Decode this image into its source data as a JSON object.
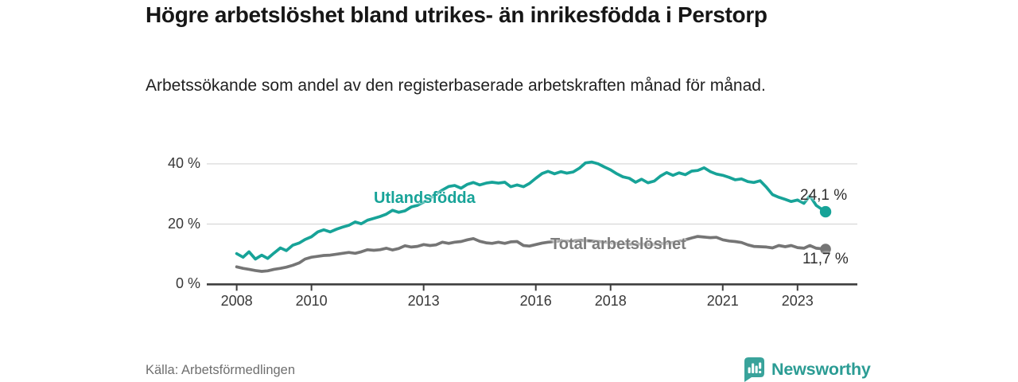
{
  "header": {
    "title": "Högre arbetslöshet bland utrikes- än inrikesfödda i Perstorp",
    "subtitle": "Arbetssökande som andel av den registerbaserade arbetskraften månad för månad."
  },
  "footer": {
    "source": "Källa: Arbetsförmedlingen",
    "logo_text": "Newsworthy"
  },
  "colors": {
    "accent_teal": "#17a398",
    "line_gray": "#757575",
    "axis": "#3f3f3f",
    "gridline": "#dadada",
    "logo_teal": "#39a39b"
  },
  "chart_data": {
    "type": "line",
    "title": "Högre arbetslöshet bland utrikes- än inrikesfödda i Perstorp",
    "subtitle": "Arbetssökande som andel av den registerbaserade arbetskraften månad för månad.",
    "xlabel": "",
    "ylabel": "",
    "grid": "horizontal",
    "legend_position": "inline-labels",
    "xlim": [
      2007.2,
      2024.6
    ],
    "ylim": [
      0,
      42
    ],
    "x_ticks": [
      2008,
      2010,
      2013,
      2016,
      2018,
      2021,
      2023
    ],
    "x_tick_labels": [
      "2008",
      "2010",
      "2013",
      "2016",
      "2018",
      "2021",
      "2023"
    ],
    "y_ticks": [
      0,
      20,
      40
    ],
    "y_tick_labels": [
      "0 %",
      "20 %",
      "40 %"
    ],
    "series": [
      {
        "name": "Utlandsfödda",
        "color": "#17a398",
        "end_value": 24.1,
        "end_label": "24,1 %",
        "points": [
          [
            2008.0,
            10.2
          ],
          [
            2008.17,
            9.0
          ],
          [
            2008.33,
            10.8
          ],
          [
            2008.5,
            8.4
          ],
          [
            2008.67,
            9.7
          ],
          [
            2008.83,
            8.6
          ],
          [
            2009.0,
            10.4
          ],
          [
            2009.17,
            12.1
          ],
          [
            2009.33,
            11.2
          ],
          [
            2009.5,
            13.0
          ],
          [
            2009.67,
            13.7
          ],
          [
            2009.83,
            14.9
          ],
          [
            2010.0,
            15.8
          ],
          [
            2010.17,
            17.4
          ],
          [
            2010.33,
            18.1
          ],
          [
            2010.5,
            17.4
          ],
          [
            2010.67,
            18.3
          ],
          [
            2010.83,
            19.0
          ],
          [
            2011.0,
            19.6
          ],
          [
            2011.17,
            20.7
          ],
          [
            2011.33,
            20.1
          ],
          [
            2011.5,
            21.3
          ],
          [
            2011.67,
            21.9
          ],
          [
            2011.83,
            22.5
          ],
          [
            2012.0,
            23.3
          ],
          [
            2012.17,
            24.6
          ],
          [
            2012.33,
            23.9
          ],
          [
            2012.5,
            24.4
          ],
          [
            2012.67,
            25.7
          ],
          [
            2012.83,
            26.2
          ],
          [
            2013.0,
            27.3
          ],
          [
            2013.17,
            28.5
          ],
          [
            2013.33,
            29.9
          ],
          [
            2013.5,
            31.3
          ],
          [
            2013.67,
            32.5
          ],
          [
            2013.83,
            32.8
          ],
          [
            2014.0,
            31.9
          ],
          [
            2014.17,
            33.2
          ],
          [
            2014.33,
            33.8
          ],
          [
            2014.5,
            33.0
          ],
          [
            2014.67,
            33.6
          ],
          [
            2014.83,
            33.9
          ],
          [
            2015.0,
            33.6
          ],
          [
            2015.17,
            33.9
          ],
          [
            2015.33,
            32.4
          ],
          [
            2015.5,
            33.0
          ],
          [
            2015.67,
            32.4
          ],
          [
            2015.83,
            33.5
          ],
          [
            2016.0,
            35.2
          ],
          [
            2016.17,
            36.8
          ],
          [
            2016.33,
            37.5
          ],
          [
            2016.5,
            36.7
          ],
          [
            2016.67,
            37.4
          ],
          [
            2016.83,
            36.9
          ],
          [
            2017.0,
            37.3
          ],
          [
            2017.17,
            38.6
          ],
          [
            2017.33,
            40.3
          ],
          [
            2017.5,
            40.6
          ],
          [
            2017.67,
            40.0
          ],
          [
            2017.83,
            39.0
          ],
          [
            2018.0,
            38.0
          ],
          [
            2018.17,
            36.7
          ],
          [
            2018.33,
            35.7
          ],
          [
            2018.5,
            35.2
          ],
          [
            2018.67,
            33.9
          ],
          [
            2018.83,
            34.9
          ],
          [
            2019.0,
            33.7
          ],
          [
            2019.17,
            34.3
          ],
          [
            2019.33,
            35.9
          ],
          [
            2019.5,
            37.1
          ],
          [
            2019.67,
            36.2
          ],
          [
            2019.83,
            37.0
          ],
          [
            2020.0,
            36.4
          ],
          [
            2020.17,
            37.6
          ],
          [
            2020.33,
            37.8
          ],
          [
            2020.5,
            38.7
          ],
          [
            2020.67,
            37.4
          ],
          [
            2020.83,
            36.6
          ],
          [
            2021.0,
            36.2
          ],
          [
            2021.17,
            35.5
          ],
          [
            2021.33,
            34.7
          ],
          [
            2021.5,
            35.0
          ],
          [
            2021.67,
            34.1
          ],
          [
            2021.83,
            33.8
          ],
          [
            2022.0,
            34.4
          ],
          [
            2022.17,
            32.2
          ],
          [
            2022.33,
            29.8
          ],
          [
            2022.5,
            28.9
          ],
          [
            2022.67,
            28.2
          ],
          [
            2022.83,
            27.5
          ],
          [
            2023.0,
            28.0
          ],
          [
            2023.17,
            26.9
          ],
          [
            2023.33,
            29.4
          ],
          [
            2023.5,
            26.2
          ],
          [
            2023.75,
            24.1
          ]
        ]
      },
      {
        "name": "Total arbetslöshet",
        "color": "#757575",
        "end_value": 11.7,
        "end_label": "11,7 %",
        "points": [
          [
            2008.0,
            5.8
          ],
          [
            2008.17,
            5.3
          ],
          [
            2008.33,
            5.0
          ],
          [
            2008.5,
            4.6
          ],
          [
            2008.67,
            4.3
          ],
          [
            2008.83,
            4.5
          ],
          [
            2009.0,
            5.0
          ],
          [
            2009.17,
            5.3
          ],
          [
            2009.33,
            5.7
          ],
          [
            2009.5,
            6.3
          ],
          [
            2009.67,
            7.1
          ],
          [
            2009.83,
            8.4
          ],
          [
            2010.0,
            9.0
          ],
          [
            2010.17,
            9.3
          ],
          [
            2010.33,
            9.6
          ],
          [
            2010.5,
            9.7
          ],
          [
            2010.67,
            10.0
          ],
          [
            2010.83,
            10.3
          ],
          [
            2011.0,
            10.6
          ],
          [
            2011.17,
            10.3
          ],
          [
            2011.33,
            10.8
          ],
          [
            2011.5,
            11.5
          ],
          [
            2011.67,
            11.3
          ],
          [
            2011.83,
            11.5
          ],
          [
            2012.0,
            12.0
          ],
          [
            2012.17,
            11.4
          ],
          [
            2012.33,
            11.9
          ],
          [
            2012.5,
            12.8
          ],
          [
            2012.67,
            12.4
          ],
          [
            2012.83,
            12.6
          ],
          [
            2013.0,
            13.2
          ],
          [
            2013.17,
            12.9
          ],
          [
            2013.33,
            13.1
          ],
          [
            2013.5,
            14.0
          ],
          [
            2013.67,
            13.6
          ],
          [
            2013.83,
            14.0
          ],
          [
            2014.0,
            14.2
          ],
          [
            2014.17,
            14.8
          ],
          [
            2014.33,
            15.2
          ],
          [
            2014.5,
            14.3
          ],
          [
            2014.67,
            13.8
          ],
          [
            2014.83,
            13.6
          ],
          [
            2015.0,
            14.0
          ],
          [
            2015.17,
            13.6
          ],
          [
            2015.33,
            14.1
          ],
          [
            2015.5,
            14.2
          ],
          [
            2015.67,
            12.9
          ],
          [
            2015.83,
            12.7
          ],
          [
            2016.0,
            13.2
          ],
          [
            2016.17,
            13.7
          ],
          [
            2016.33,
            14.0
          ],
          [
            2016.5,
            14.2
          ],
          [
            2016.67,
            14.5
          ],
          [
            2016.83,
            14.3
          ],
          [
            2017.0,
            14.4
          ],
          [
            2017.17,
            14.6
          ],
          [
            2017.33,
            14.5
          ],
          [
            2017.5,
            14.4
          ],
          [
            2017.67,
            14.2
          ],
          [
            2017.83,
            14.0
          ],
          [
            2018.0,
            13.8
          ],
          [
            2018.17,
            13.6
          ],
          [
            2018.33,
            13.5
          ],
          [
            2018.5,
            13.4
          ],
          [
            2018.67,
            13.3
          ],
          [
            2018.83,
            13.4
          ],
          [
            2019.0,
            13.2
          ],
          [
            2019.17,
            13.3
          ],
          [
            2019.33,
            13.5
          ],
          [
            2019.5,
            13.6
          ],
          [
            2019.67,
            13.9
          ],
          [
            2019.83,
            14.3
          ],
          [
            2020.0,
            14.8
          ],
          [
            2020.17,
            15.4
          ],
          [
            2020.33,
            15.9
          ],
          [
            2020.5,
            15.7
          ],
          [
            2020.67,
            15.5
          ],
          [
            2020.83,
            15.6
          ],
          [
            2021.0,
            14.8
          ],
          [
            2021.17,
            14.4
          ],
          [
            2021.33,
            14.2
          ],
          [
            2021.5,
            13.9
          ],
          [
            2021.67,
            13.1
          ],
          [
            2021.83,
            12.6
          ],
          [
            2022.0,
            12.5
          ],
          [
            2022.17,
            12.4
          ],
          [
            2022.33,
            12.1
          ],
          [
            2022.5,
            12.9
          ],
          [
            2022.67,
            12.5
          ],
          [
            2022.83,
            12.9
          ],
          [
            2023.0,
            12.2
          ],
          [
            2023.17,
            12.0
          ],
          [
            2023.33,
            12.9
          ],
          [
            2023.5,
            12.0
          ],
          [
            2023.75,
            11.7
          ]
        ]
      }
    ]
  }
}
